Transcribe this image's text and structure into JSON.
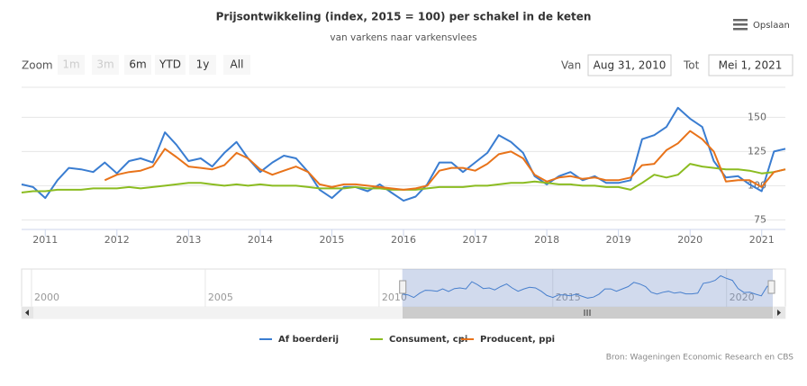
{
  "chart_data": {
    "type": "line",
    "title": "Prijsontwikkeling (index, 2015 = 100) per schakel in de keten",
    "subtitle": "van varkens naar varkensvlees",
    "export_label": "Opslaan",
    "range_selector": {
      "label": "Zoom",
      "buttons": [
        {
          "label": "1m",
          "enabled": false
        },
        {
          "label": "3m",
          "enabled": false
        },
        {
          "label": "6m",
          "enabled": true
        },
        {
          "label": "YTD",
          "enabled": true
        },
        {
          "label": "1y",
          "enabled": true
        },
        {
          "label": "All",
          "enabled": true
        }
      ],
      "from_label": "Van",
      "from": "Aug 31, 2010",
      "to_label": "Tot",
      "to": "Mei 1, 2021"
    },
    "x": [
      2010.67,
      2010.83,
      2011,
      2011.17,
      2011.33,
      2011.5,
      2011.67,
      2011.83,
      2012,
      2012.17,
      2012.33,
      2012.5,
      2012.67,
      2012.83,
      2013,
      2013.17,
      2013.33,
      2013.5,
      2013.67,
      2013.83,
      2014,
      2014.17,
      2014.33,
      2014.5,
      2014.67,
      2014.83,
      2015,
      2015.17,
      2015.33,
      2015.5,
      2015.67,
      2015.83,
      2016,
      2016.17,
      2016.33,
      2016.5,
      2016.67,
      2016.83,
      2017,
      2017.17,
      2017.33,
      2017.5,
      2017.67,
      2017.83,
      2018,
      2018.17,
      2018.33,
      2018.5,
      2018.67,
      2018.83,
      2019,
      2019.17,
      2019.33,
      2019.5,
      2019.67,
      2019.83,
      2020,
      2020.17,
      2020.33,
      2020.5,
      2020.67,
      2020.83,
      2021,
      2021.17,
      2021.33
    ],
    "xlim": [
      2010.67,
      2021.33
    ],
    "xticks": [
      2011,
      2012,
      2013,
      2014,
      2015,
      2016,
      2017,
      2018,
      2019,
      2020,
      2021
    ],
    "ylim": [
      68,
      172
    ],
    "yticks": [
      75,
      100,
      125,
      150
    ],
    "grid": true,
    "series": [
      {
        "name": "Af boerderij",
        "color": "#3a7dd1",
        "values": [
          101,
          99,
          91,
          104,
          113,
          112,
          110,
          117,
          109,
          118,
          120,
          117,
          139,
          130,
          118,
          120,
          114,
          124,
          132,
          120,
          110,
          117,
          122,
          120,
          110,
          97,
          91,
          99,
          99,
          96,
          101,
          95,
          89,
          92,
          101,
          117,
          117,
          110,
          117,
          124,
          137,
          132,
          124,
          107,
          101,
          107,
          110,
          104,
          107,
          102,
          102,
          104,
          134,
          137,
          143,
          157,
          149,
          143,
          118,
          106,
          107,
          101,
          96,
          125,
          127
        ]
      },
      {
        "name": "Consument, cpi",
        "color": "#8bbc21",
        "values": [
          95,
          96,
          96,
          97,
          97,
          97,
          98,
          98,
          98,
          99,
          98,
          99,
          100,
          101,
          102,
          102,
          101,
          100,
          101,
          100,
          101,
          100,
          100,
          100,
          99,
          98,
          98,
          98,
          99,
          98,
          98,
          97,
          97,
          97,
          98,
          99,
          99,
          99,
          100,
          100,
          101,
          102,
          102,
          103,
          102,
          101,
          101,
          100,
          100,
          99,
          99,
          97,
          102,
          108,
          106,
          108,
          116,
          114,
          113,
          112,
          112,
          111,
          109,
          110,
          112
        ]
      },
      {
        "name": "Producent, ppi",
        "color": "#e8731a",
        "values": [
          null,
          null,
          null,
          null,
          null,
          null,
          null,
          104,
          108,
          110,
          111,
          114,
          127,
          121,
          114,
          113,
          112,
          115,
          124,
          120,
          112,
          108,
          111,
          114,
          110,
          101,
          99,
          101,
          101,
          100,
          99,
          98,
          97,
          98,
          100,
          111,
          113,
          113,
          111,
          116,
          123,
          125,
          120,
          108,
          103,
          106,
          107,
          105,
          106,
          104,
          104,
          106,
          115,
          116,
          126,
          131,
          140,
          134,
          125,
          103,
          104,
          104,
          99,
          110,
          112
        ]
      }
    ],
    "navigator": {
      "xlim": [
        1999.87,
        2021.33
      ],
      "xticks": [
        2000,
        2005,
        2010,
        2015,
        2020
      ]
    },
    "credits": "Bron: Wageningen Economic Research en CBS"
  }
}
